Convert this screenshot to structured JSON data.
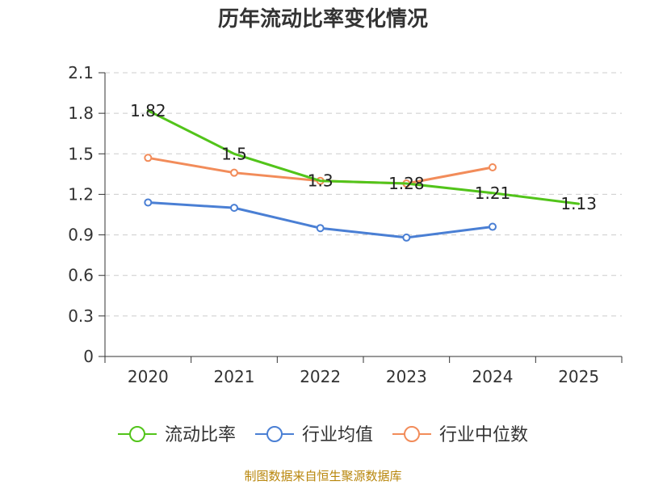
{
  "chart_data": {
    "type": "line",
    "title": "历年流动比率变化情况",
    "categories": [
      "2020",
      "2021",
      "2022",
      "2023",
      "2024",
      "2025"
    ],
    "ylim": [
      0,
      2.1
    ],
    "yticks": [
      "0",
      "0.3",
      "0.6",
      "0.9",
      "1.2",
      "1.5",
      "1.8",
      "2.1"
    ],
    "grid": true,
    "legend_position": "bottom",
    "series": [
      {
        "name": "流动比率",
        "color": "#52c41a",
        "values": [
          1.82,
          1.5,
          1.3,
          1.28,
          1.21,
          1.13
        ],
        "labels": [
          "1.82",
          "1.5",
          "1.3",
          "1.28",
          "1.21",
          "1.13"
        ],
        "show_labels": true,
        "markers": false
      },
      {
        "name": "行业均值",
        "color": "#4a7fd4",
        "values": [
          1.14,
          1.1,
          0.95,
          0.88,
          0.96,
          null
        ],
        "show_labels": false,
        "markers": true
      },
      {
        "name": "行业中位数",
        "color": "#f28c5a",
        "values": [
          1.47,
          1.36,
          1.3,
          1.28,
          1.4,
          null
        ],
        "show_labels": false,
        "markers": true
      }
    ],
    "source": "制图数据来自恒生聚源数据库"
  }
}
